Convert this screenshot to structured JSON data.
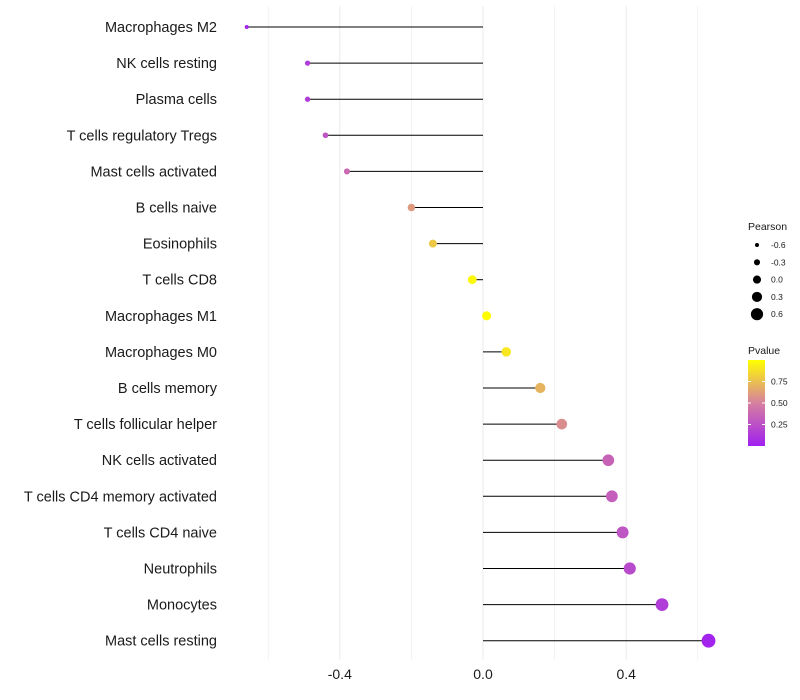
{
  "chart_data": {
    "type": "lollipop",
    "categories": [
      "Macrophages M2",
      "NK cells resting",
      "Plasma cells",
      "T cells regulatory  Tregs ",
      "Mast cells activated",
      "B cells naive",
      "Eosinophils",
      "T cells CD8",
      "Macrophages M1",
      "Macrophages M0",
      "B cells memory",
      "T cells follicular helper",
      "NK cells activated",
      "T cells CD4 memory activated",
      "T cells CD4 naive",
      "Neutrophils",
      "Monocytes",
      "Mast cells resting"
    ],
    "values": [
      -0.66,
      -0.49,
      -0.49,
      -0.44,
      -0.38,
      -0.2,
      -0.14,
      -0.03,
      0.01,
      0.065,
      0.16,
      0.22,
      0.35,
      0.36,
      0.39,
      0.41,
      0.5,
      0.63
    ],
    "pvalues": [
      0.02,
      0.15,
      0.15,
      0.28,
      0.38,
      0.6,
      0.78,
      0.97,
      0.99,
      0.9,
      0.7,
      0.55,
      0.35,
      0.33,
      0.28,
      0.22,
      0.15,
      0.02
    ],
    "xlim": [
      -0.72,
      0.72
    ],
    "x_ticks": [
      -0.4,
      0.0,
      0.4
    ],
    "x_tick_labels": [
      "-0.4",
      "0.0",
      "0.4"
    ],
    "grid": true,
    "size_legend": {
      "title": "Pearson",
      "values": [
        -0.6,
        -0.3,
        0.0,
        0.3,
        0.6
      ],
      "labels": [
        "-0.6",
        "-0.3",
        "0.0",
        "0.3",
        "0.6"
      ]
    },
    "color_legend": {
      "title": "Pvalue",
      "ticks": [
        0.75,
        0.5,
        0.25
      ],
      "labels": [
        "0.75",
        "0.50",
        "0.25"
      ],
      "range": [
        0.0,
        1.0
      ],
      "low_color": "#a020f0",
      "mid_color": "#d6809f",
      "high_color": "#ffff00"
    },
    "line_color": "#000000",
    "grid_color": "#ebebeb"
  }
}
